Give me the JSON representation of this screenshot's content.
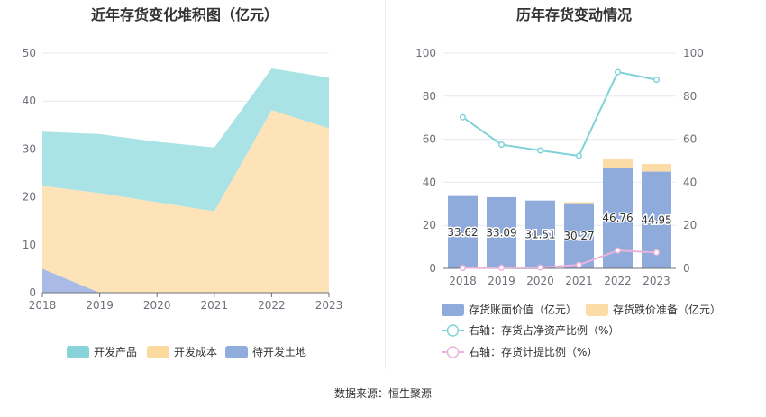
{
  "chart_data": [
    {
      "type": "area",
      "title": "近年存货变化堆积图（亿元）",
      "x": [
        "2018",
        "2019",
        "2020",
        "2021",
        "2022",
        "2023"
      ],
      "ylim": [
        0,
        50
      ],
      "yticks": [
        "0",
        "10",
        "20",
        "30",
        "40",
        "50"
      ],
      "stacked": true,
      "grid": true,
      "legend_position": "bottom",
      "series": [
        {
          "name": "待开发土地",
          "color": "#a9bbe4",
          "legend_color": "#8facdd",
          "values": [
            5.0,
            0.0,
            0.0,
            0.0,
            0.0,
            0.0
          ]
        },
        {
          "name": "开发成本",
          "color": "#fde3b7",
          "legend_color": "#fcd99d",
          "values": [
            17.3,
            20.8,
            18.9,
            17.0,
            38.1,
            34.3
          ]
        },
        {
          "name": "开发产品",
          "color": "#a9e3e6",
          "legend_color": "#87d3d9",
          "values": [
            11.3,
            12.3,
            12.6,
            13.3,
            8.7,
            10.6
          ]
        }
      ],
      "legend_order": [
        "开发产品",
        "开发成本",
        "待开发土地"
      ]
    },
    {
      "type": "bar",
      "title": "历年存货变动情况",
      "categories": [
        "2018",
        "2019",
        "2020",
        "2021",
        "2022",
        "2023"
      ],
      "ylim": [
        0,
        100
      ],
      "y2lim": [
        0,
        100
      ],
      "yticks": [
        "0",
        "20",
        "40",
        "60",
        "80",
        "100"
      ],
      "grid": true,
      "legend_position": "bottom",
      "bars": [
        {
          "name": "存货账面价值（亿元）",
          "color": "#8fabdb",
          "values": [
            33.62,
            33.09,
            31.51,
            30.27,
            46.76,
            44.95
          ],
          "labels": [
            "33.62",
            "33.09",
            "31.51",
            "30.27",
            "46.76",
            "44.95"
          ]
        },
        {
          "name": "存货跌价准备（亿元）",
          "color": "#fcdca6",
          "values": [
            0.0,
            0.0,
            0.0,
            0.5,
            3.9,
            3.6
          ]
        }
      ],
      "lines": [
        {
          "name": "右轴：存货占净资产比例（%）",
          "color": "#7fd3d8",
          "values": [
            70.2,
            57.5,
            54.8,
            52.3,
            91.2,
            87.6
          ]
        },
        {
          "name": "右轴：存货计提比例（%）",
          "color": "#ebb3dc",
          "values": [
            0.2,
            0.3,
            0.4,
            1.6,
            8.3,
            7.4
          ]
        }
      ]
    }
  ],
  "footer": {
    "source": "数据来源：恒生聚源"
  }
}
